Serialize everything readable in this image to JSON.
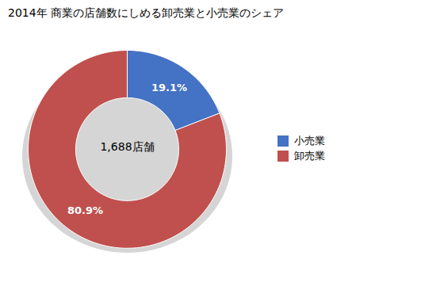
{
  "chart_data": {
    "type": "pie",
    "title": "2014年 商業の店舗数にしめる卸売業と小売業のシェア",
    "categories": [
      "小売業",
      "卸売業"
    ],
    "values": [
      19.1,
      80.9
    ],
    "value_labels": [
      "19.1%",
      "80.9%"
    ],
    "data_labels": true,
    "colors": [
      "#4472C4",
      "#C0504D"
    ],
    "annotation": "1,688店舗",
    "legend": "right"
  }
}
